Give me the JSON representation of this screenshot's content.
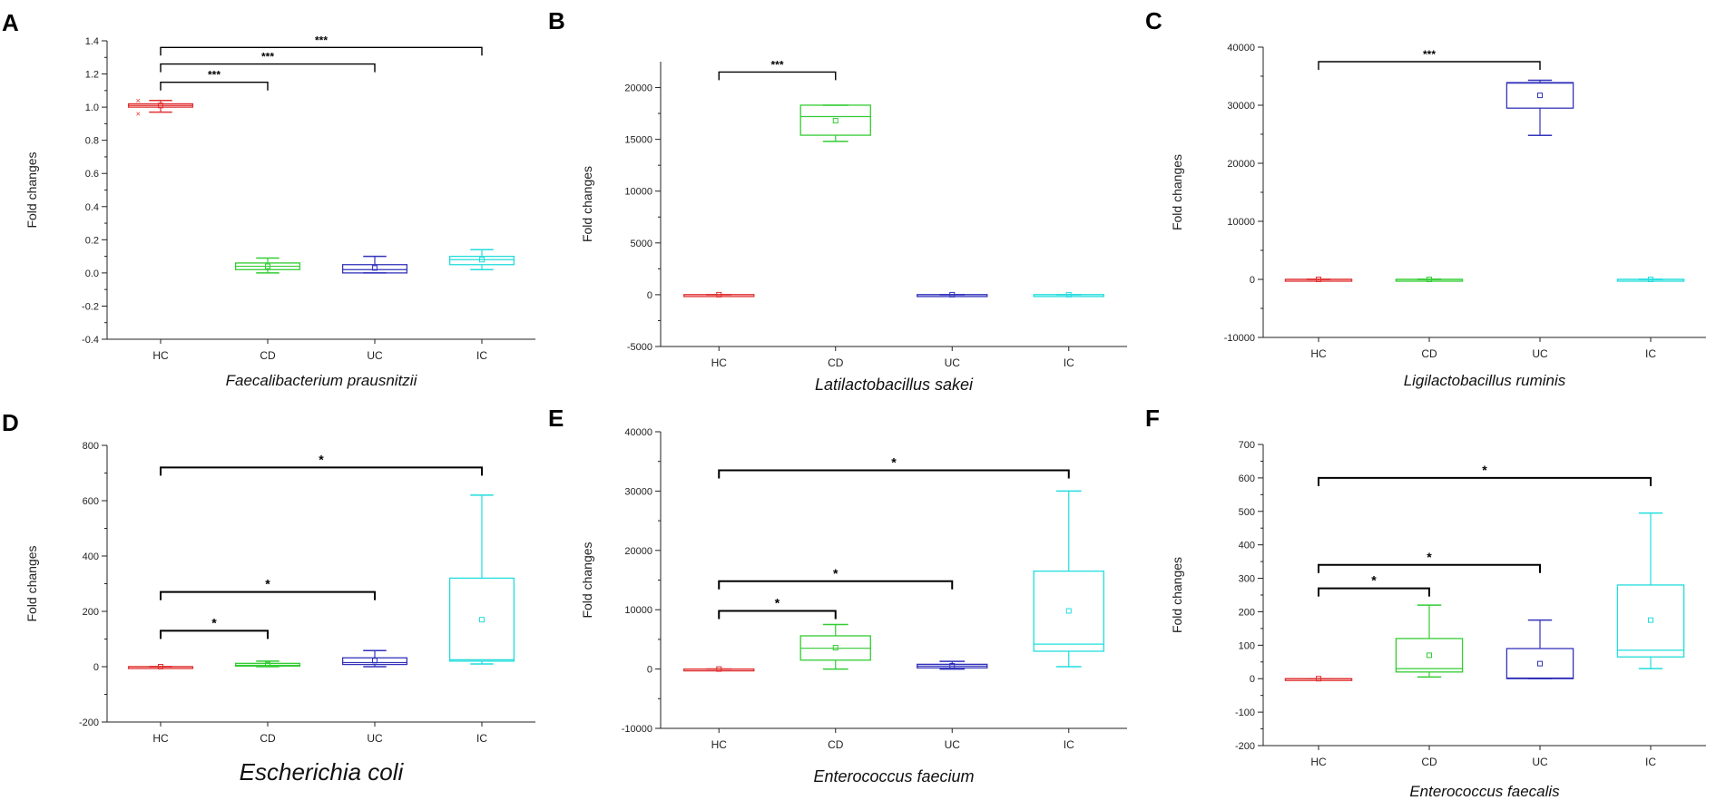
{
  "figure": {
    "panels": [
      "A",
      "B",
      "C",
      "D",
      "E",
      "F"
    ]
  },
  "chart_data": [
    {
      "panel": "A",
      "type": "box",
      "organism": "Faecalibacterium prausnitzii",
      "ylabel": "Fold changes",
      "categories": [
        "HC",
        "CD",
        "UC",
        "IC"
      ],
      "ylim": [
        -0.4,
        1.4
      ],
      "yticks": [
        -0.4,
        -0.2,
        0.0,
        0.2,
        0.4,
        0.6,
        0.8,
        1.0,
        1.2,
        1.4
      ],
      "ytick_labels": [
        "-0.4",
        "-0.2",
        "0.0",
        "0.2",
        "0.4",
        "0.6",
        "0.8",
        "1.0",
        "1.2",
        "1.4"
      ],
      "boxes": [
        {
          "group": "HC",
          "color": "#e03030",
          "min": 0.97,
          "q1": 1.0,
          "median": 1.01,
          "q3": 1.02,
          "max": 1.04,
          "mean": 1.01,
          "outliers": [
            0.96,
            1.04
          ]
        },
        {
          "group": "CD",
          "color": "#33cc33",
          "min": 0.0,
          "q1": 0.02,
          "median": 0.04,
          "q3": 0.06,
          "max": 0.09,
          "mean": 0.04,
          "outliers": []
        },
        {
          "group": "UC",
          "color": "#3333bb",
          "min": 0.0,
          "q1": 0.0,
          "median": 0.02,
          "q3": 0.05,
          "max": 0.1,
          "mean": 0.03,
          "outliers": []
        },
        {
          "group": "IC",
          "color": "#22dddd",
          "min": 0.02,
          "q1": 0.05,
          "median": 0.08,
          "q3": 0.1,
          "max": 0.14,
          "mean": 0.08,
          "outliers": []
        }
      ],
      "brackets": [
        {
          "from": "HC",
          "to": "CD",
          "y": 1.15,
          "label": "***"
        },
        {
          "from": "HC",
          "to": "UC",
          "y": 1.26,
          "label": "***"
        },
        {
          "from": "HC",
          "to": "IC",
          "y": 1.36,
          "label": "***"
        }
      ]
    },
    {
      "panel": "B",
      "type": "box",
      "organism": "Latilactobacillus sakei",
      "ylabel": "Fold changes",
      "categories": [
        "HC",
        "CD",
        "UC",
        "IC"
      ],
      "ylim": [
        -5000,
        22500
      ],
      "yticks": [
        -5000,
        0,
        5000,
        10000,
        15000,
        20000
      ],
      "ytick_labels": [
        "-5000",
        "0",
        "5000",
        "10000",
        "15000",
        "20000"
      ],
      "boxes": [
        {
          "group": "HC",
          "color": "#e03030",
          "min": 0,
          "q1": 0,
          "median": 0,
          "q3": 0,
          "max": 0,
          "mean": 0,
          "outliers": []
        },
        {
          "group": "CD",
          "color": "#33cc33",
          "min": 14800,
          "q1": 15400,
          "median": 17200,
          "q3": 18300,
          "max": 18300,
          "mean": 16800,
          "outliers": []
        },
        {
          "group": "UC",
          "color": "#3333bb",
          "min": 0,
          "q1": 0,
          "median": 0,
          "q3": 0,
          "max": 0,
          "mean": 0,
          "outliers": []
        },
        {
          "group": "IC",
          "color": "#22dddd",
          "min": 0,
          "q1": 0,
          "median": 0,
          "q3": 0,
          "max": 0,
          "mean": 0,
          "outliers": []
        }
      ],
      "brackets": [
        {
          "from": "HC",
          "to": "CD",
          "y": 21500,
          "label": "***"
        }
      ]
    },
    {
      "panel": "C",
      "type": "box",
      "organism": "Ligilactobacillus ruminis",
      "ylabel": "Fold changes",
      "categories": [
        "HC",
        "CD",
        "UC",
        "IC"
      ],
      "ylim": [
        -10000,
        40000
      ],
      "yticks": [
        -10000,
        0,
        10000,
        20000,
        30000,
        40000
      ],
      "ytick_labels": [
        "-10000",
        "0",
        "10000",
        "20000",
        "30000",
        "40000"
      ],
      "boxes": [
        {
          "group": "HC",
          "color": "#e03030",
          "min": 0,
          "q1": 0,
          "median": 0,
          "q3": 0,
          "max": 0,
          "mean": 0,
          "outliers": []
        },
        {
          "group": "CD",
          "color": "#33cc33",
          "min": 0,
          "q1": 0,
          "median": 0,
          "q3": 0,
          "max": 0,
          "mean": 0,
          "outliers": []
        },
        {
          "group": "UC",
          "color": "#3333bb",
          "min": 24800,
          "q1": 29500,
          "median": 33800,
          "q3": 33900,
          "max": 34300,
          "mean": 31700,
          "outliers": []
        },
        {
          "group": "IC",
          "color": "#22dddd",
          "min": 0,
          "q1": 0,
          "median": 0,
          "q3": 0,
          "max": 0,
          "mean": 0,
          "outliers": []
        }
      ],
      "brackets": [
        {
          "from": "HC",
          "to": "UC",
          "y": 37500,
          "label": "***"
        }
      ]
    },
    {
      "panel": "D",
      "type": "box",
      "organism": "Escherichia coli",
      "ylabel": "Fold changes",
      "categories": [
        "HC",
        "CD",
        "UC",
        "IC"
      ],
      "ylim": [
        -200,
        800
      ],
      "yticks": [
        -200,
        0,
        200,
        400,
        600,
        800
      ],
      "ytick_labels": [
        "-200",
        "0",
        "200",
        "400",
        "600",
        "800"
      ],
      "boxes": [
        {
          "group": "HC",
          "color": "#e03030",
          "min": 0,
          "q1": 0,
          "median": 0,
          "q3": 0,
          "max": 0,
          "mean": 0,
          "outliers": []
        },
        {
          "group": "CD",
          "color": "#33cc33",
          "min": 0,
          "q1": 2,
          "median": 5,
          "q3": 12,
          "max": 20,
          "mean": 8,
          "outliers": []
        },
        {
          "group": "UC",
          "color": "#3333bb",
          "min": 0,
          "q1": 8,
          "median": 15,
          "q3": 32,
          "max": 58,
          "mean": 22,
          "outliers": []
        },
        {
          "group": "IC",
          "color": "#22dddd",
          "min": 10,
          "q1": 20,
          "median": 25,
          "q3": 320,
          "max": 620,
          "mean": 170,
          "outliers": []
        }
      ],
      "brackets": [
        {
          "from": "HC",
          "to": "CD",
          "y": 130,
          "label": "*"
        },
        {
          "from": "HC",
          "to": "UC",
          "y": 270,
          "label": "*"
        },
        {
          "from": "HC",
          "to": "IC",
          "y": 720,
          "label": "*"
        }
      ]
    },
    {
      "panel": "E",
      "type": "box",
      "organism": "Enterococcus faecium",
      "ylabel": "Fold changes",
      "categories": [
        "HC",
        "CD",
        "UC",
        "IC"
      ],
      "ylim": [
        -10000,
        40000
      ],
      "yticks": [
        -10000,
        0,
        10000,
        20000,
        30000,
        40000
      ],
      "ytick_labels": [
        "-10000",
        "0",
        "10000",
        "20000",
        "30000",
        "40000"
      ],
      "boxes": [
        {
          "group": "HC",
          "color": "#e03030",
          "min": 0,
          "q1": 0,
          "median": 0,
          "q3": 0,
          "max": 0,
          "mean": 0,
          "outliers": []
        },
        {
          "group": "CD",
          "color": "#33cc33",
          "min": 0,
          "q1": 1500,
          "median": 3500,
          "q3": 5600,
          "max": 7500,
          "mean": 3600,
          "outliers": []
        },
        {
          "group": "UC",
          "color": "#3333bb",
          "min": 0,
          "q1": 200,
          "median": 500,
          "q3": 800,
          "max": 1300,
          "mean": 550,
          "outliers": []
        },
        {
          "group": "IC",
          "color": "#22dddd",
          "min": 400,
          "q1": 3000,
          "median": 4200,
          "q3": 16500,
          "max": 30000,
          "mean": 9800,
          "outliers": []
        }
      ],
      "brackets": [
        {
          "from": "HC",
          "to": "CD",
          "y": 9800,
          "label": "*"
        },
        {
          "from": "HC",
          "to": "UC",
          "y": 14800,
          "label": "*"
        },
        {
          "from": "HC",
          "to": "IC",
          "y": 33500,
          "label": "*"
        }
      ]
    },
    {
      "panel": "F",
      "type": "box",
      "organism": "Enterococcus faecalis",
      "ylabel": "Fold changes",
      "categories": [
        "HC",
        "CD",
        "UC",
        "IC"
      ],
      "ylim": [
        -200,
        700
      ],
      "yticks": [
        -200,
        -100,
        0,
        100,
        200,
        300,
        400,
        500,
        600,
        700
      ],
      "ytick_labels": [
        "-200",
        "-100",
        "0",
        "100",
        "200",
        "300",
        "400",
        "500",
        "600",
        "700"
      ],
      "boxes": [
        {
          "group": "HC",
          "color": "#e03030",
          "min": 0,
          "q1": 0,
          "median": 0,
          "q3": 0,
          "max": 0,
          "mean": 0,
          "outliers": []
        },
        {
          "group": "CD",
          "color": "#33cc33",
          "min": 5,
          "q1": 20,
          "median": 30,
          "q3": 120,
          "max": 220,
          "mean": 70,
          "outliers": []
        },
        {
          "group": "UC",
          "color": "#3333bb",
          "min": 0,
          "q1": 0,
          "median": 2,
          "q3": 90,
          "max": 175,
          "mean": 45,
          "outliers": []
        },
        {
          "group": "IC",
          "color": "#22dddd",
          "min": 30,
          "q1": 65,
          "median": 85,
          "q3": 280,
          "max": 495,
          "mean": 175,
          "outliers": []
        }
      ],
      "brackets": [
        {
          "from": "HC",
          "to": "CD",
          "y": 270,
          "label": "*"
        },
        {
          "from": "HC",
          "to": "UC",
          "y": 340,
          "label": "*"
        },
        {
          "from": "HC",
          "to": "IC",
          "y": 600,
          "label": "*"
        }
      ]
    }
  ]
}
